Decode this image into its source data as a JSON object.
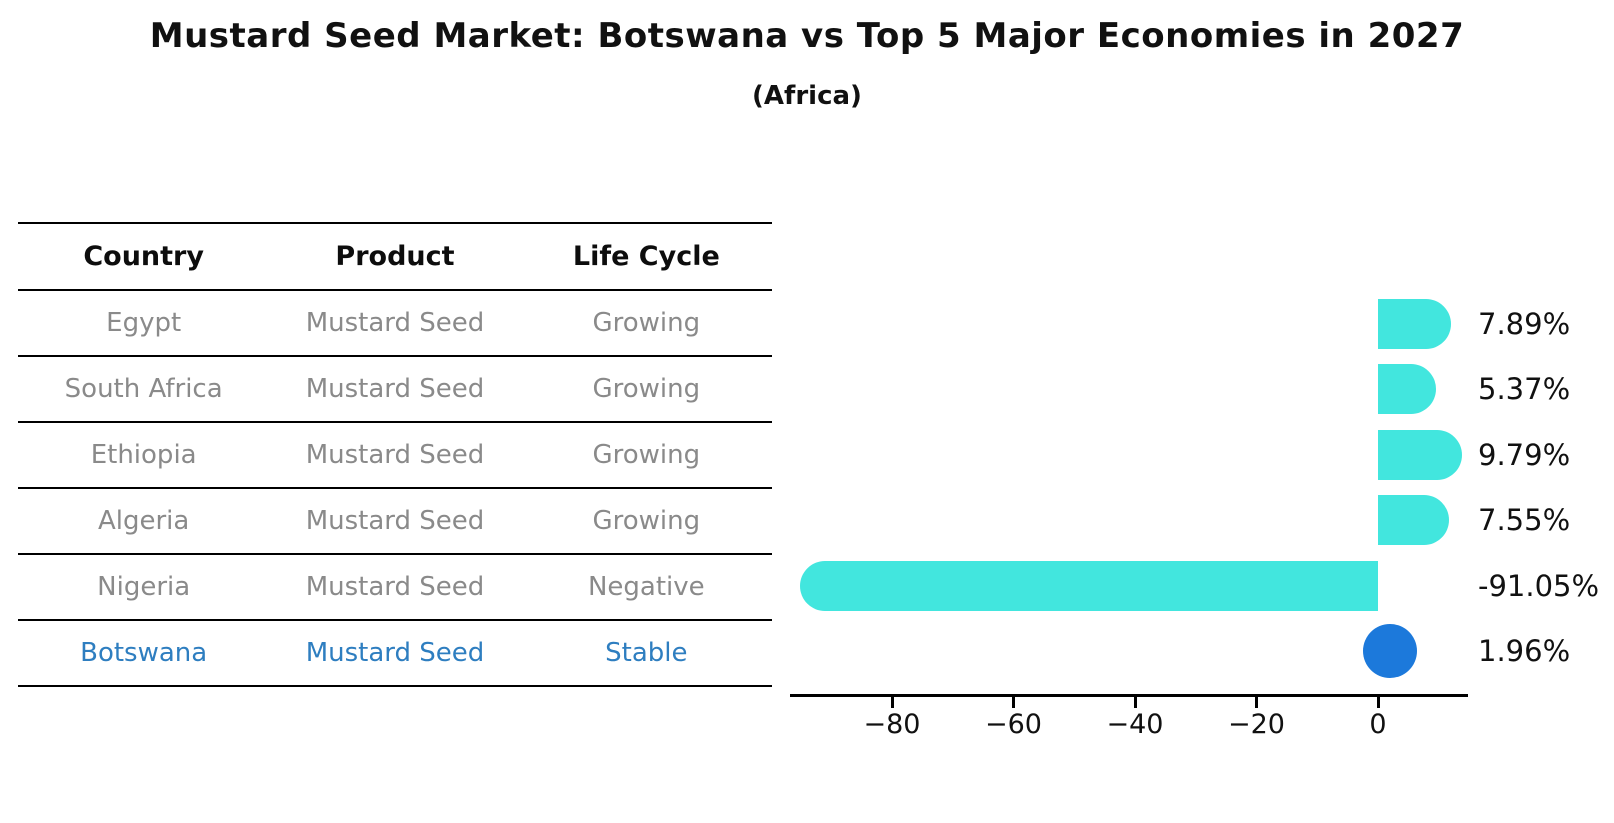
{
  "chart_data": {
    "type": "bar",
    "orientation": "horizontal",
    "title": "Mustard Seed Market: Botswana vs Top 5 Major Economies in 2027",
    "subtitle": "(Africa)",
    "categories": [
      "Egypt",
      "South Africa",
      "Ethiopia",
      "Algeria",
      "Nigeria",
      "Botswana"
    ],
    "values": [
      7.89,
      5.37,
      9.79,
      7.55,
      -91.05,
      1.96
    ],
    "value_labels": [
      "7.89%",
      "5.37%",
      "9.79%",
      "7.55%",
      "-91.05%",
      "1.96%"
    ],
    "mark_styles": [
      "bar",
      "bar",
      "bar",
      "bar",
      "bar",
      "dot"
    ],
    "highlight_category": "Botswana",
    "xlim": [
      -96.8,
      14.8
    ],
    "xticks": [
      -80,
      -60,
      -40,
      -20,
      0
    ],
    "xtick_labels": [
      "−80",
      "−60",
      "−40",
      "−20",
      "0"
    ],
    "grid": false,
    "legend": false,
    "colors": {
      "bar": "#42E6DE",
      "dot": "#1C79DB",
      "highlight_text": "#2E7EC0",
      "table_text": "#8A8A8A",
      "header_text": "#0D0D0D",
      "axis": "#000000"
    }
  },
  "table": {
    "headers": [
      "Country",
      "Product",
      "Life Cycle"
    ],
    "rows": [
      {
        "country": "Egypt",
        "product": "Mustard Seed",
        "life_cycle": "Growing"
      },
      {
        "country": "South Africa",
        "product": "Mustard Seed",
        "life_cycle": "Growing"
      },
      {
        "country": "Ethiopia",
        "product": "Mustard Seed",
        "life_cycle": "Growing"
      },
      {
        "country": "Algeria",
        "product": "Mustard Seed",
        "life_cycle": "Growing"
      },
      {
        "country": "Nigeria",
        "product": "Mustard Seed",
        "life_cycle": "Negative"
      },
      {
        "country": "Botswana",
        "product": "Mustard Seed",
        "life_cycle": "Stable"
      }
    ]
  }
}
